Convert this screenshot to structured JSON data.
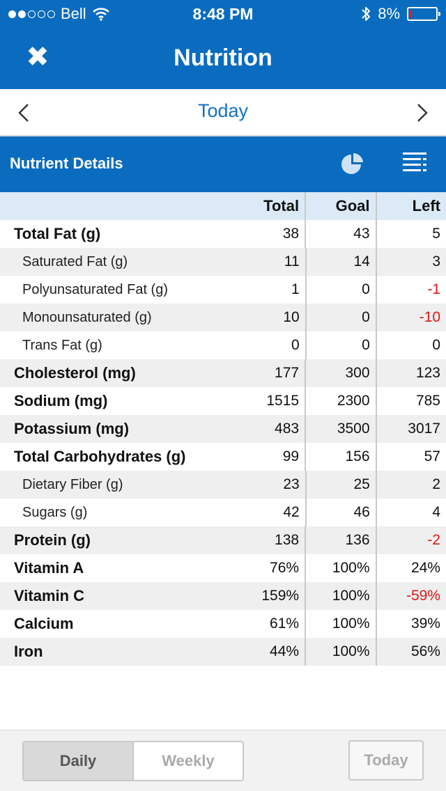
{
  "status_bar": {
    "carrier": "Bell",
    "time": "8:48 PM",
    "battery": "8%",
    "battery_level": 0.08
  },
  "header": {
    "title": "Nutrition",
    "close_icon": "close-icon"
  },
  "date_nav": {
    "label": "Today"
  },
  "section": {
    "title": "Nutrient Details"
  },
  "table": {
    "columns": [
      "Total",
      "Goal",
      "Left"
    ],
    "rows": [
      {
        "name": "Total Fat (g)",
        "total": "38",
        "goal": "43",
        "left": "5",
        "level": "main",
        "negative": false
      },
      {
        "name": "Saturated Fat (g)",
        "total": "11",
        "goal": "14",
        "left": "3",
        "level": "sub",
        "negative": false
      },
      {
        "name": "Polyunsaturated Fat (g)",
        "total": "1",
        "goal": "0",
        "left": "-1",
        "level": "sub",
        "negative": true
      },
      {
        "name": "Monounsaturated (g)",
        "total": "10",
        "goal": "0",
        "left": "-10",
        "level": "sub",
        "negative": true
      },
      {
        "name": "Trans Fat (g)",
        "total": "0",
        "goal": "0",
        "left": "0",
        "level": "sub",
        "negative": false
      },
      {
        "name": "Cholesterol (mg)",
        "total": "177",
        "goal": "300",
        "left": "123",
        "level": "main",
        "negative": false
      },
      {
        "name": "Sodium (mg)",
        "total": "1515",
        "goal": "2300",
        "left": "785",
        "level": "main",
        "negative": false
      },
      {
        "name": "Potassium (mg)",
        "total": "483",
        "goal": "3500",
        "left": "3017",
        "level": "main",
        "negative": false
      },
      {
        "name": "Total Carbohydrates (g)",
        "total": "99",
        "goal": "156",
        "left": "57",
        "level": "main",
        "negative": false
      },
      {
        "name": "Dietary Fiber (g)",
        "total": "23",
        "goal": "25",
        "left": "2",
        "level": "sub",
        "negative": false
      },
      {
        "name": "Sugars (g)",
        "total": "42",
        "goal": "46",
        "left": "4",
        "level": "sub",
        "negative": false
      },
      {
        "name": "Protein (g)",
        "total": "138",
        "goal": "136",
        "left": "-2",
        "level": "main",
        "negative": true
      },
      {
        "name": "Vitamin A",
        "total": "76%",
        "goal": "100%",
        "left": "24%",
        "level": "main",
        "negative": false
      },
      {
        "name": "Vitamin C",
        "total": "159%",
        "goal": "100%",
        "left": "-59%",
        "level": "main",
        "negative": true
      },
      {
        "name": "Calcium",
        "total": "61%",
        "goal": "100%",
        "left": "39%",
        "level": "main",
        "negative": false
      },
      {
        "name": "Iron",
        "total": "44%",
        "goal": "100%",
        "left": "56%",
        "level": "main",
        "negative": false
      }
    ]
  },
  "bottom_bar": {
    "daily_label": "Daily",
    "weekly_label": "Weekly",
    "today_label": "Today",
    "selected": "Daily"
  },
  "colors": {
    "brand_blue": "#0a6cbf",
    "link_blue": "#1270c4",
    "negative_red": "#e01818",
    "header_row": "#dbeaf6",
    "alt_row": "#efefef"
  }
}
